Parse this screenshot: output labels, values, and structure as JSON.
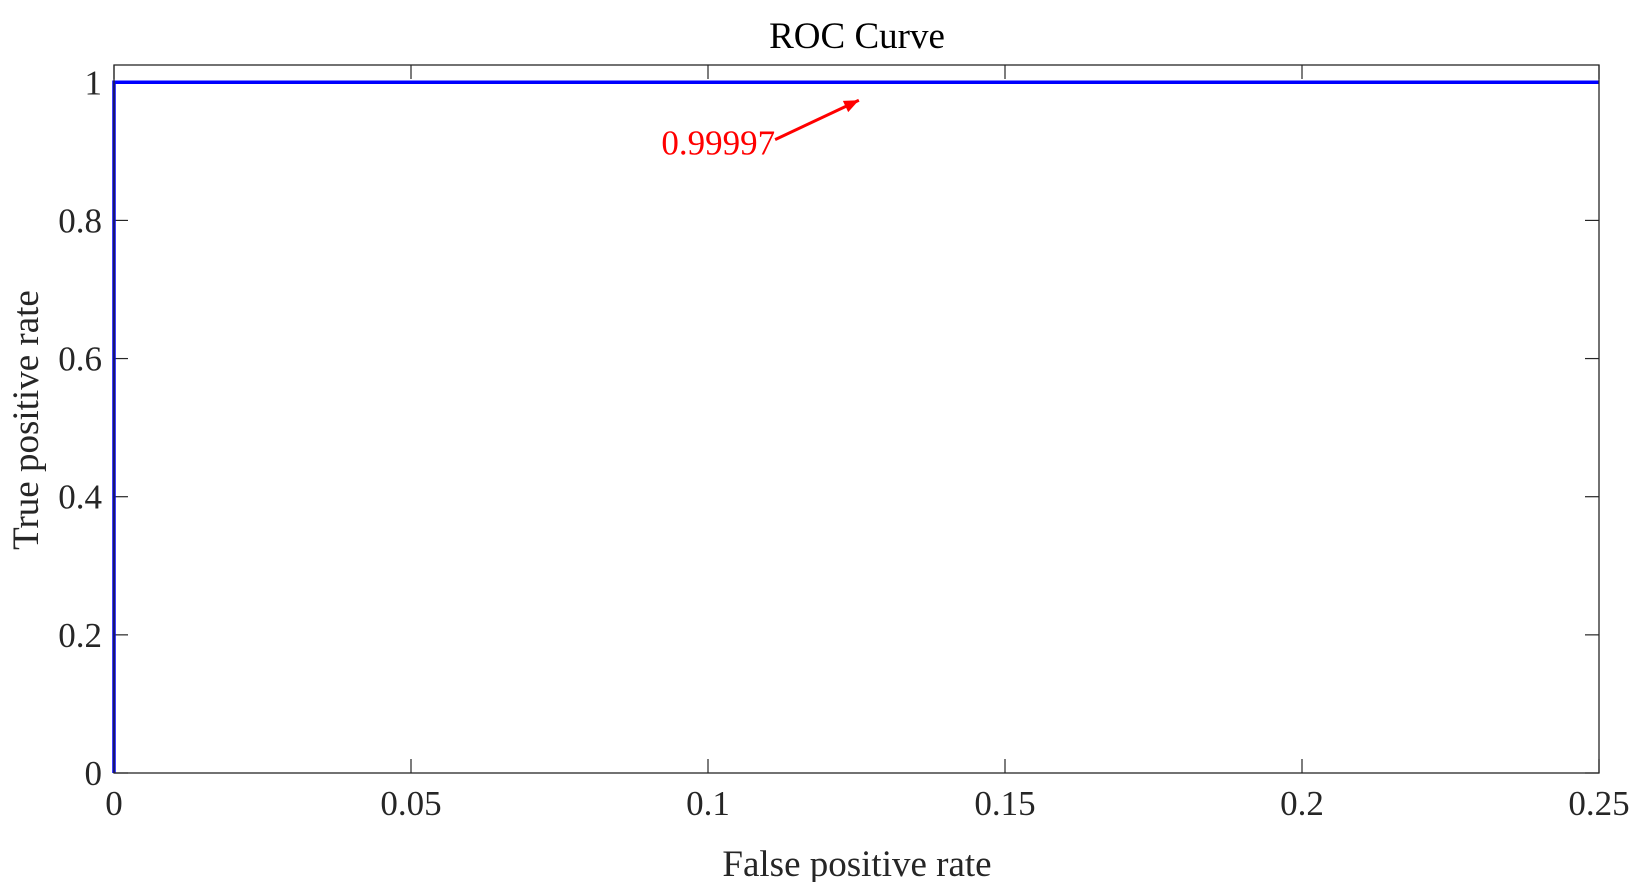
{
  "chart_data": {
    "type": "line",
    "title": "ROC Curve",
    "xlabel": "False positive rate",
    "ylabel": "True positive rate",
    "xlim": [
      0,
      0.25
    ],
    "ylim": [
      0,
      1.025
    ],
    "xticks": [
      0,
      0.05,
      0.1,
      0.15,
      0.2,
      0.25
    ],
    "xtick_labels": [
      "0",
      "0.05",
      "0.1",
      "0.15",
      "0.2",
      "0.25"
    ],
    "yticks": [
      0,
      0.2,
      0.4,
      0.6,
      0.8,
      1
    ],
    "ytick_labels": [
      "0",
      "0.2",
      "0.4",
      "0.6",
      "0.8",
      "1"
    ],
    "grid": false,
    "series": [
      {
        "name": "ROC",
        "color": "#0000ff",
        "x": [
          0,
          0,
          0,
          0.25
        ],
        "y": [
          0,
          0.99997,
          1,
          1
        ]
      }
    ],
    "annotation": {
      "text": "0.99997",
      "color": "#ff0000",
      "text_at": [
        0.1113,
        0.917
      ],
      "arrow_to": [
        0.1254,
        0.974
      ]
    }
  }
}
